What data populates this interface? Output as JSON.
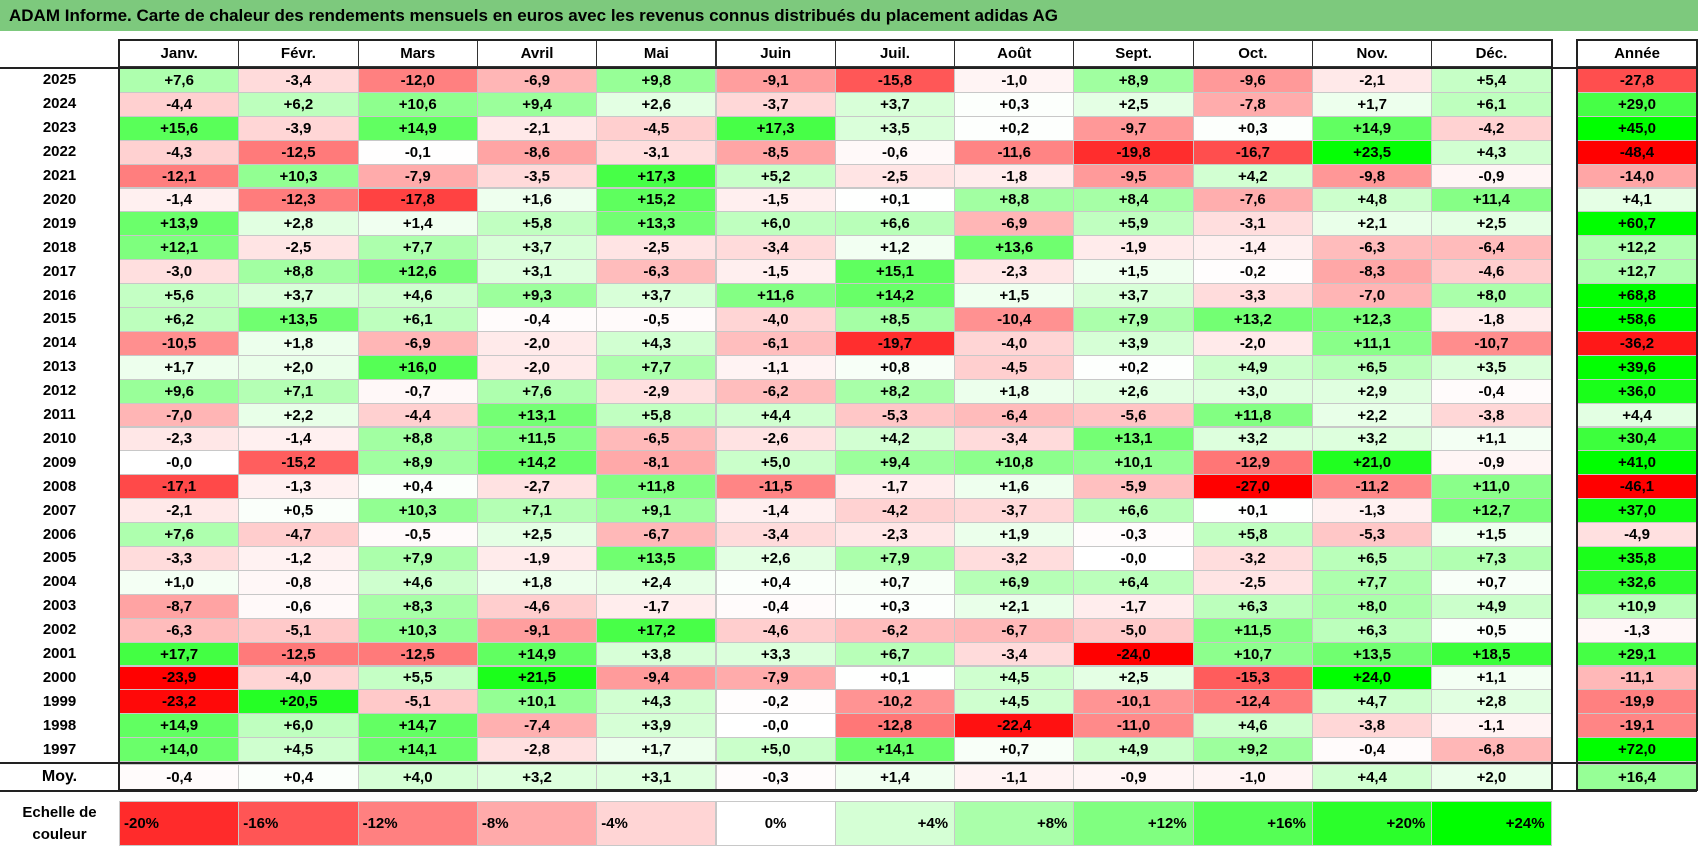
{
  "title": "ADAM Informe. Carte de chaleur des rendements mensuels en euros avec les revenus connus distribués du placement adidas AG",
  "chart_data": {
    "type": "heatmap",
    "title": "ADAM Informe. Carte de chaleur des rendements mensuels en euros avec les revenus connus distribués du placement adidas AG",
    "months": [
      "Janv.",
      "Févr.",
      "Mars",
      "Avril",
      "Mai",
      "Juin",
      "Juil.",
      "Août",
      "Sept.",
      "Oct.",
      "Nov.",
      "Déc."
    ],
    "annual_header": "Année",
    "rows": [
      {
        "year": "2025",
        "values": [
          "+7,6",
          "-3,4",
          "-12,0",
          "-6,9",
          "+9,8",
          "-9,1",
          "-15,8",
          "-1,0",
          "+8,9",
          "-9,6",
          "-2,1",
          "+5,4"
        ],
        "annual": "-27,8"
      },
      {
        "year": "2024",
        "values": [
          "-4,4",
          "+6,2",
          "+10,6",
          "+9,4",
          "+2,6",
          "-3,7",
          "+3,7",
          "+0,3",
          "+2,5",
          "-7,8",
          "+1,7",
          "+6,1"
        ],
        "annual": "+29,0"
      },
      {
        "year": "2023",
        "values": [
          "+15,6",
          "-3,9",
          "+14,9",
          "-2,1",
          "-4,5",
          "+17,3",
          "+3,5",
          "+0,2",
          "-9,7",
          "+0,3",
          "+14,9",
          "-4,2"
        ],
        "annual": "+45,0"
      },
      {
        "year": "2022",
        "values": [
          "-4,3",
          "-12,5",
          "-0,1",
          "-8,6",
          "-3,1",
          "-8,5",
          "-0,6",
          "-11,6",
          "-19,8",
          "-16,7",
          "+23,5",
          "+4,3"
        ],
        "annual": "-48,4"
      },
      {
        "year": "2021",
        "values": [
          "-12,1",
          "+10,3",
          "-7,9",
          "-3,5",
          "+17,3",
          "+5,2",
          "-2,5",
          "-1,8",
          "-9,5",
          "+4,2",
          "-9,8",
          "-0,9"
        ],
        "annual": "-14,0"
      },
      {
        "year": "2020",
        "values": [
          "-1,4",
          "-12,3",
          "-17,8",
          "+1,6",
          "+15,2",
          "-1,5",
          "+0,1",
          "+8,8",
          "+8,4",
          "-7,6",
          "+4,8",
          "+11,4"
        ],
        "annual": "+4,1"
      },
      {
        "year": "2019",
        "values": [
          "+13,9",
          "+2,8",
          "+1,4",
          "+5,8",
          "+13,3",
          "+6,0",
          "+6,6",
          "-6,9",
          "+5,9",
          "-3,1",
          "+2,1",
          "+2,5"
        ],
        "annual": "+60,7"
      },
      {
        "year": "2018",
        "values": [
          "+12,1",
          "-2,5",
          "+7,7",
          "+3,7",
          "-2,5",
          "-3,4",
          "+1,2",
          "+13,6",
          "-1,9",
          "-1,4",
          "-6,3",
          "-6,4"
        ],
        "annual": "+12,2"
      },
      {
        "year": "2017",
        "values": [
          "-3,0",
          "+8,8",
          "+12,6",
          "+3,1",
          "-6,3",
          "-1,5",
          "+15,1",
          "-2,3",
          "+1,5",
          "-0,2",
          "-8,3",
          "-4,6"
        ],
        "annual": "+12,7"
      },
      {
        "year": "2016",
        "values": [
          "+5,6",
          "+3,7",
          "+4,6",
          "+9,3",
          "+3,7",
          "+11,6",
          "+14,2",
          "+1,5",
          "+3,7",
          "-3,3",
          "-7,0",
          "+8,0"
        ],
        "annual": "+68,8"
      },
      {
        "year": "2015",
        "values": [
          "+6,2",
          "+13,5",
          "+6,1",
          "-0,4",
          "-0,5",
          "-4,0",
          "+8,5",
          "-10,4",
          "+7,9",
          "+13,2",
          "+12,3",
          "-1,8"
        ],
        "annual": "+58,6"
      },
      {
        "year": "2014",
        "values": [
          "-10,5",
          "+1,8",
          "-6,9",
          "-2,0",
          "+4,3",
          "-6,1",
          "-19,7",
          "-4,0",
          "+3,9",
          "-2,0",
          "+11,1",
          "-10,7"
        ],
        "annual": "-36,2"
      },
      {
        "year": "2013",
        "values": [
          "+1,7",
          "+2,0",
          "+16,0",
          "-2,0",
          "+7,7",
          "-1,1",
          "+0,8",
          "-4,5",
          "+0,2",
          "+4,9",
          "+6,5",
          "+3,5"
        ],
        "annual": "+39,6"
      },
      {
        "year": "2012",
        "values": [
          "+9,6",
          "+7,1",
          "-0,7",
          "+7,6",
          "-2,9",
          "-6,2",
          "+8,2",
          "+1,8",
          "+2,6",
          "+3,0",
          "+2,9",
          "-0,4"
        ],
        "annual": "+36,0"
      },
      {
        "year": "2011",
        "values": [
          "-7,0",
          "+2,2",
          "-4,4",
          "+13,1",
          "+5,8",
          "+4,4",
          "-5,3",
          "-6,4",
          "-5,6",
          "+11,8",
          "+2,2",
          "-3,8"
        ],
        "annual": "+4,4"
      },
      {
        "year": "2010",
        "values": [
          "-2,3",
          "-1,4",
          "+8,8",
          "+11,5",
          "-6,5",
          "-2,6",
          "+4,2",
          "-3,4",
          "+13,1",
          "+3,2",
          "+3,2",
          "+1,1"
        ],
        "annual": "+30,4"
      },
      {
        "year": "2009",
        "values": [
          "-0,0",
          "-15,2",
          "+8,9",
          "+14,2",
          "-8,1",
          "+5,0",
          "+9,4",
          "+10,8",
          "+10,1",
          "-12,9",
          "+21,0",
          "-0,9"
        ],
        "annual": "+41,0"
      },
      {
        "year": "2008",
        "values": [
          "-17,1",
          "-1,3",
          "+0,4",
          "-2,7",
          "+11,8",
          "-11,5",
          "-1,7",
          "+1,6",
          "-5,9",
          "-27,0",
          "-11,2",
          "+11,0"
        ],
        "annual": "-46,1"
      },
      {
        "year": "2007",
        "values": [
          "-2,1",
          "+0,5",
          "+10,3",
          "+7,1",
          "+9,1",
          "-1,4",
          "-4,2",
          "-3,7",
          "+6,6",
          "+0,1",
          "-1,3",
          "+12,7"
        ],
        "annual": "+37,0"
      },
      {
        "year": "2006",
        "values": [
          "+7,6",
          "-4,7",
          "-0,5",
          "+2,5",
          "-6,7",
          "-3,4",
          "-2,3",
          "+1,9",
          "-0,3",
          "+5,8",
          "-5,3",
          "+1,5"
        ],
        "annual": "-4,9"
      },
      {
        "year": "2005",
        "values": [
          "-3,3",
          "-1,2",
          "+7,9",
          "-1,9",
          "+13,5",
          "+2,6",
          "+7,9",
          "-3,2",
          "-0,0",
          "-3,2",
          "+6,5",
          "+7,3"
        ],
        "annual": "+35,8"
      },
      {
        "year": "2004",
        "values": [
          "+1,0",
          "-0,8",
          "+4,6",
          "+1,8",
          "+2,4",
          "+0,4",
          "+0,7",
          "+6,9",
          "+6,4",
          "-2,5",
          "+7,7",
          "+0,7"
        ],
        "annual": "+32,6"
      },
      {
        "year": "2003",
        "values": [
          "-8,7",
          "-0,6",
          "+8,3",
          "-4,6",
          "-1,7",
          "-0,4",
          "+0,3",
          "+2,1",
          "-1,7",
          "+6,3",
          "+8,0",
          "+4,9"
        ],
        "annual": "+10,9"
      },
      {
        "year": "2002",
        "values": [
          "-6,3",
          "-5,1",
          "+10,3",
          "-9,1",
          "+17,2",
          "-4,6",
          "-6,2",
          "-6,7",
          "-5,0",
          "+11,5",
          "+6,3",
          "+0,5"
        ],
        "annual": "-1,3"
      },
      {
        "year": "2001",
        "values": [
          "+17,7",
          "-12,5",
          "-12,5",
          "+14,9",
          "+3,8",
          "+3,3",
          "+6,7",
          "-3,4",
          "-24,0",
          "+10,7",
          "+13,5",
          "+18,5"
        ],
        "annual": "+29,1"
      },
      {
        "year": "2000",
        "values": [
          "-23,9",
          "-4,0",
          "+5,5",
          "+21,5",
          "-9,4",
          "-7,9",
          "+0,1",
          "+4,5",
          "+2,5",
          "-15,3",
          "+24,0",
          "+1,1"
        ],
        "annual": "-11,1"
      },
      {
        "year": "1999",
        "values": [
          "-23,2",
          "+20,5",
          "-5,1",
          "+10,1",
          "+4,3",
          "-0,2",
          "-10,2",
          "+4,5",
          "-10,1",
          "-12,4",
          "+4,7",
          "+2,8"
        ],
        "annual": "-19,9"
      },
      {
        "year": "1998",
        "values": [
          "+14,9",
          "+6,0",
          "+14,7",
          "-7,4",
          "+3,9",
          "-0,0",
          "-12,8",
          "-22,4",
          "-11,0",
          "+4,6",
          "-3,8",
          "-1,1"
        ],
        "annual": "-19,1"
      },
      {
        "year": "1997",
        "values": [
          "+14,0",
          "+4,5",
          "+14,1",
          "-2,8",
          "+1,7",
          "+5,0",
          "+14,1",
          "+0,7",
          "+4,9",
          "+9,2",
          "-0,4",
          "-6,8"
        ],
        "annual": "+72,0"
      }
    ],
    "average": {
      "label": "Moy.",
      "values": [
        "-0,4",
        "+0,4",
        "+4,0",
        "+3,2",
        "+3,1",
        "-0,3",
        "+1,4",
        "-1,1",
        "-0,9",
        "-1,0",
        "+4,4",
        "+2,0"
      ],
      "annual": "+16,4"
    },
    "scale": {
      "label_line1": "Echelle de",
      "label_line2": "couleur",
      "stops": [
        {
          "label": "-20%",
          "value": -20
        },
        {
          "label": "-16%",
          "value": -16
        },
        {
          "label": "-12%",
          "value": -12
        },
        {
          "label": "-8%",
          "value": -8
        },
        {
          "label": "-4%",
          "value": -4
        },
        {
          "label": "0%",
          "value": 0
        },
        {
          "label": "+4%",
          "value": 4
        },
        {
          "label": "+8%",
          "value": 8
        },
        {
          "label": "+12%",
          "value": 12
        },
        {
          "label": "+16%",
          "value": 16
        },
        {
          "label": "+20%",
          "value": 20
        },
        {
          "label": "+24%",
          "value": 24
        }
      ]
    },
    "colors": {
      "negative_max": "#ff0000",
      "neutral": "#ffffff",
      "positive_max": "#00ff00",
      "title_bg": "#7dc97d"
    }
  }
}
